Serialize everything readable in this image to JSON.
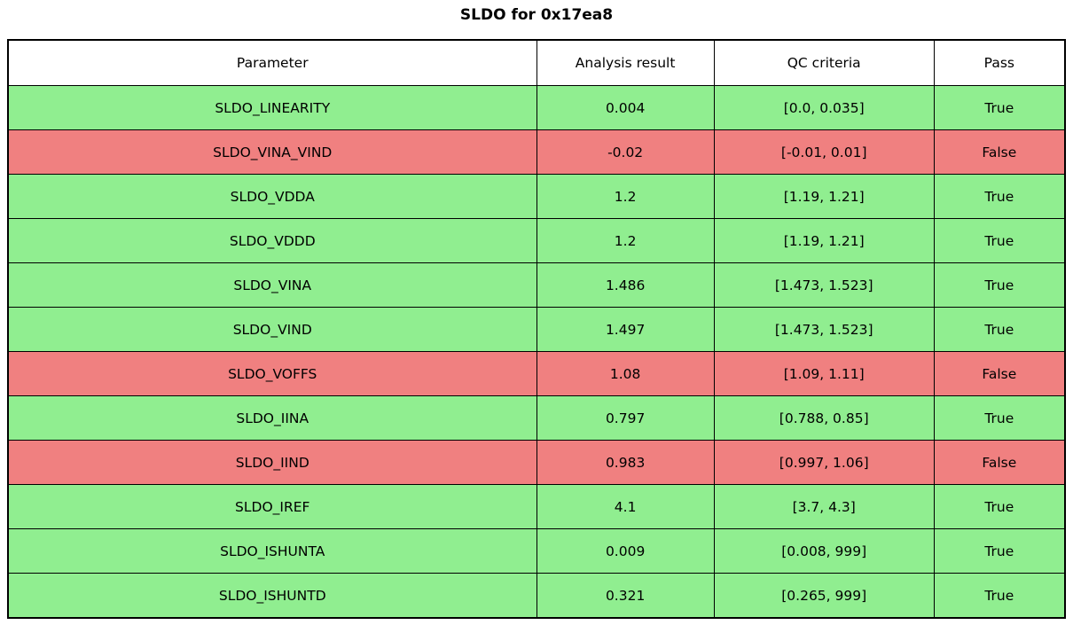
{
  "title": "SLDO for 0x17ea8",
  "colors": {
    "pass_row": "#90EE90",
    "fail_row": "#F08080",
    "border": "#000000",
    "header_bg": "#FFFFFF",
    "text": "#000000"
  },
  "chart_data": {
    "type": "table",
    "title": "SLDO for 0x17ea8",
    "columns": [
      "Parameter",
      "Analysis result",
      "QC criteria",
      "Pass"
    ],
    "rows": [
      {
        "parameter": "SLDO_LINEARITY",
        "result": "0.004",
        "criteria": "[0.0, 0.035]",
        "pass": "True"
      },
      {
        "parameter": "SLDO_VINA_VIND",
        "result": "-0.02",
        "criteria": "[-0.01, 0.01]",
        "pass": "False"
      },
      {
        "parameter": "SLDO_VDDA",
        "result": "1.2",
        "criteria": "[1.19, 1.21]",
        "pass": "True"
      },
      {
        "parameter": "SLDO_VDDD",
        "result": "1.2",
        "criteria": "[1.19, 1.21]",
        "pass": "True"
      },
      {
        "parameter": "SLDO_VINA",
        "result": "1.486",
        "criteria": "[1.473, 1.523]",
        "pass": "True"
      },
      {
        "parameter": "SLDO_VIND",
        "result": "1.497",
        "criteria": "[1.473, 1.523]",
        "pass": "True"
      },
      {
        "parameter": "SLDO_VOFFS",
        "result": "1.08",
        "criteria": "[1.09, 1.11]",
        "pass": "False"
      },
      {
        "parameter": "SLDO_IINA",
        "result": "0.797",
        "criteria": "[0.788, 0.85]",
        "pass": "True"
      },
      {
        "parameter": "SLDO_IIND",
        "result": "0.983",
        "criteria": "[0.997, 1.06]",
        "pass": "False"
      },
      {
        "parameter": "SLDO_IREF",
        "result": "4.1",
        "criteria": "[3.7, 4.3]",
        "pass": "True"
      },
      {
        "parameter": "SLDO_ISHUNTA",
        "result": "0.009",
        "criteria": "[0.008, 999]",
        "pass": "True"
      },
      {
        "parameter": "SLDO_ISHUNTD",
        "result": "0.321",
        "criteria": "[0.265, 999]",
        "pass": "True"
      }
    ]
  }
}
